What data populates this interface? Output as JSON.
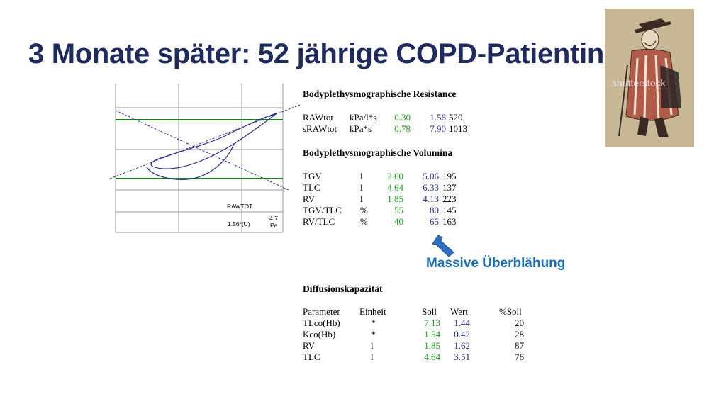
{
  "title": "3 Monate später: 52 jährige COPD-Patientin",
  "chart": {
    "label": "RAWTOT",
    "value_label": "1.56*(U)",
    "scale_value": "4.7",
    "scale_unit": "Pa"
  },
  "illustration": {
    "watermark": "shutterstock"
  },
  "resistance": {
    "heading": "Bodyplethysmographische Resistance",
    "rows": [
      {
        "name": "RAWtot",
        "unit": "kPa/l*s",
        "soll": "0.30",
        "wert": "1.56",
        "percent": "520"
      },
      {
        "name": "sRAWtot",
        "unit": "kPa*s",
        "soll": "0.78",
        "wert": "7.90",
        "percent": "1013"
      }
    ]
  },
  "volumina": {
    "heading": "Bodyplethysmographische Volumina",
    "rows": [
      {
        "name": "TGV",
        "unit": "l",
        "soll": "2.60",
        "wert": "5.06",
        "percent": "195"
      },
      {
        "name": "TLC",
        "unit": "l",
        "soll": "4.64",
        "wert": "6.33",
        "percent": "137"
      },
      {
        "name": "RV",
        "unit": "l",
        "soll": "1.85",
        "wert": "4.13",
        "percent": "223"
      },
      {
        "name": "TGV/TLC",
        "unit": "%",
        "soll": "55",
        "wert": "80",
        "percent": "145"
      },
      {
        "name": "RV/TLC",
        "unit": "%",
        "soll": "40",
        "wert": "65",
        "percent": "163"
      }
    ]
  },
  "annotation": "Massive Überblähung",
  "diffusion": {
    "heading": "Diffusionskapazität",
    "columns": {
      "parameter": "Parameter",
      "einheit": "Einheit",
      "soll": "Soll",
      "wert": "Wert",
      "percent": "%Soll"
    },
    "rows": [
      {
        "name": "TLco(Hb)",
        "unit": "*",
        "soll": "7.13",
        "wert": "1.44",
        "percent": "20"
      },
      {
        "name": "Kco(Hb)",
        "unit": "*",
        "soll": "1.54",
        "wert": "0.42",
        "percent": "28"
      },
      {
        "name": "RV",
        "unit": "l",
        "soll": "1.85",
        "wert": "1.62",
        "percent": "87"
      },
      {
        "name": "TLC",
        "unit": "l",
        "soll": "4.64",
        "wert": "3.51",
        "percent": "76"
      }
    ]
  },
  "colors": {
    "title": "#1f2a5e",
    "soll": "#1e9e1e",
    "wert": "#2a2f8a",
    "annotation": "#1a6fb5"
  }
}
